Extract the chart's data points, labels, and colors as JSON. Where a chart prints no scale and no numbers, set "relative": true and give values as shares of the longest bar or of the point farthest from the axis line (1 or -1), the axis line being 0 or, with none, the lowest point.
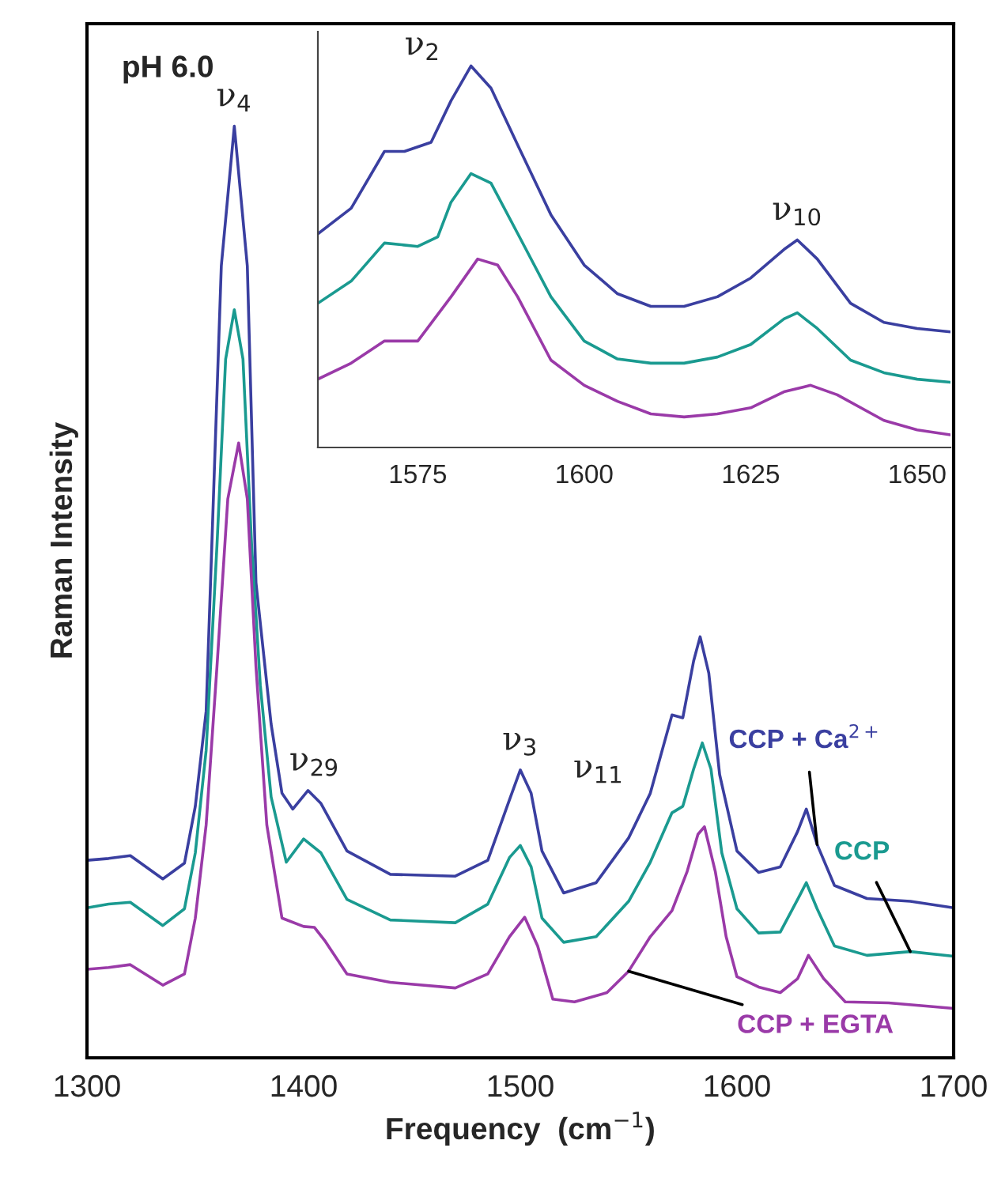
{
  "chart_data": [
    {
      "type": "line",
      "relative": true,
      "xlabel": "Frequency  (cm$^{−1}$)",
      "ylabel": "Raman Intensity",
      "xlim": [
        1300,
        1700
      ],
      "xticks": [
        1300,
        1400,
        1500,
        1600,
        1700
      ],
      "grid": false,
      "legend": false,
      "tick_labels": "x",
      "annotations": [
        "pH 6.0",
        {
          "text": "ν$_{4}$",
          "x": 1368,
          "y": 1.0
        },
        {
          "text": "ν$_{29}$",
          "x": 1405,
          "y": 0.287
        },
        {
          "text": "ν$_{3}$",
          "x": 1500,
          "y": 0.309
        },
        {
          "text": "ν$_{11}$",
          "x": 1560,
          "y": 0.284
        }
      ],
      "series": [
        {
          "name": "CCP + Ca$^{2+}$",
          "color": "#3a3fa0",
          "x": [
            1300,
            1310,
            1320,
            1335,
            1345,
            1350,
            1355,
            1357,
            1362,
            1368,
            1374,
            1378,
            1385,
            1390,
            1395,
            1402,
            1408,
            1420,
            1440,
            1470,
            1485,
            1495,
            1500,
            1505,
            1510,
            1520,
            1535,
            1550,
            1560,
            1570,
            1575,
            1580,
            1583,
            1587,
            1592,
            1600,
            1610,
            1620,
            1628,
            1632,
            1637,
            1645,
            1660,
            1680,
            1700
          ],
          "values": [
            0.212,
            0.214,
            0.217,
            0.192,
            0.209,
            0.27,
            0.372,
            0.508,
            0.85,
            1.0,
            0.85,
            0.51,
            0.358,
            0.284,
            0.267,
            0.287,
            0.273,
            0.222,
            0.197,
            0.195,
            0.212,
            0.277,
            0.309,
            0.284,
            0.222,
            0.177,
            0.188,
            0.236,
            0.284,
            0.368,
            0.365,
            0.426,
            0.452,
            0.413,
            0.304,
            0.222,
            0.199,
            0.205,
            0.243,
            0.267,
            0.229,
            0.185,
            0.171,
            0.168,
            0.161
          ]
        },
        {
          "name": "CCP",
          "color": "#1a9a90",
          "x": [
            1300,
            1310,
            1320,
            1335,
            1345,
            1350,
            1355,
            1360,
            1364,
            1368,
            1372,
            1376,
            1380,
            1385,
            1392,
            1400,
            1408,
            1420,
            1440,
            1470,
            1485,
            1495,
            1500,
            1505,
            1510,
            1520,
            1535,
            1550,
            1560,
            1570,
            1575,
            1580,
            1584,
            1588,
            1593,
            1600,
            1610,
            1620,
            1628,
            1632,
            1637,
            1645,
            1660,
            1680,
            1700
          ],
          "values": [
            0.161,
            0.165,
            0.167,
            0.142,
            0.16,
            0.22,
            0.33,
            0.55,
            0.75,
            0.803,
            0.75,
            0.55,
            0.4,
            0.28,
            0.21,
            0.235,
            0.22,
            0.17,
            0.148,
            0.145,
            0.165,
            0.215,
            0.228,
            0.205,
            0.15,
            0.124,
            0.13,
            0.168,
            0.21,
            0.263,
            0.27,
            0.31,
            0.338,
            0.31,
            0.22,
            0.16,
            0.134,
            0.135,
            0.17,
            0.188,
            0.16,
            0.12,
            0.11,
            0.114,
            0.109
          ]
        },
        {
          "name": "CCP + EGTA",
          "color": "#9a3aa8",
          "x": [
            1300,
            1310,
            1320,
            1335,
            1345,
            1350,
            1355,
            1360,
            1365,
            1370,
            1374,
            1378,
            1383,
            1390,
            1400,
            1405,
            1410,
            1420,
            1440,
            1470,
            1485,
            1495,
            1502,
            1508,
            1515,
            1525,
            1540,
            1550,
            1560,
            1570,
            1577,
            1582,
            1585,
            1590,
            1595,
            1600,
            1610,
            1620,
            1628,
            1633,
            1640,
            1650,
            1670,
            1700
          ],
          "values": [
            0.095,
            0.097,
            0.1,
            0.078,
            0.09,
            0.15,
            0.25,
            0.42,
            0.6,
            0.66,
            0.6,
            0.42,
            0.25,
            0.15,
            0.141,
            0.14,
            0.125,
            0.09,
            0.081,
            0.075,
            0.09,
            0.13,
            0.151,
            0.12,
            0.063,
            0.06,
            0.07,
            0.093,
            0.13,
            0.158,
            0.2,
            0.24,
            0.248,
            0.2,
            0.13,
            0.087,
            0.076,
            0.07,
            0.085,
            0.11,
            0.085,
            0.06,
            0.059,
            0.053
          ]
        }
      ]
    },
    {
      "type": "line",
      "relative": true,
      "xlim": [
        1560,
        1655
      ],
      "xticks": [
        1575,
        1600,
        1625,
        1650
      ],
      "grid": false,
      "legend": false,
      "tick_labels": "x",
      "annotations": [
        {
          "text": "ν$_{2}$",
          "x": 1583,
          "y": 1.0
        },
        {
          "text": "ν$_{10}$",
          "x": 1632,
          "y": 0.544
        }
      ],
      "series": [
        {
          "color": "#3a3fa0",
          "x": [
            1560,
            1565,
            1570,
            1573,
            1577,
            1580,
            1583,
            1586,
            1590,
            1595,
            1600,
            1605,
            1610,
            1615,
            1620,
            1625,
            1630,
            1632,
            1635,
            1640,
            1645,
            1650,
            1655
          ],
          "values": [
            0.56,
            0.627,
            0.776,
            0.776,
            0.8,
            0.909,
            1.0,
            0.942,
            0.793,
            0.61,
            0.478,
            0.403,
            0.37,
            0.37,
            0.395,
            0.444,
            0.519,
            0.544,
            0.494,
            0.378,
            0.328,
            0.312,
            0.303
          ]
        },
        {
          "color": "#1a9a90",
          "x": [
            1560,
            1565,
            1570,
            1575,
            1578,
            1580,
            1583,
            1586,
            1590,
            1595,
            1600,
            1605,
            1610,
            1615,
            1620,
            1625,
            1630,
            1632,
            1635,
            1640,
            1645,
            1650,
            1655
          ],
          "values": [
            0.378,
            0.436,
            0.536,
            0.527,
            0.552,
            0.643,
            0.718,
            0.693,
            0.561,
            0.395,
            0.279,
            0.232,
            0.221,
            0.221,
            0.237,
            0.27,
            0.337,
            0.353,
            0.312,
            0.229,
            0.196,
            0.179,
            0.171
          ]
        },
        {
          "color": "#9a3aa8",
          "x": [
            1560,
            1565,
            1570,
            1575,
            1580,
            1584,
            1587,
            1590,
            1595,
            1600,
            1605,
            1610,
            1615,
            1620,
            1625,
            1630,
            1634,
            1638,
            1645,
            1650,
            1655
          ],
          "values": [
            0.179,
            0.221,
            0.279,
            0.279,
            0.395,
            0.494,
            0.478,
            0.395,
            0.229,
            0.163,
            0.121,
            0.088,
            0.08,
            0.088,
            0.104,
            0.146,
            0.163,
            0.138,
            0.071,
            0.046,
            0.033
          ]
        }
      ]
    }
  ]
}
